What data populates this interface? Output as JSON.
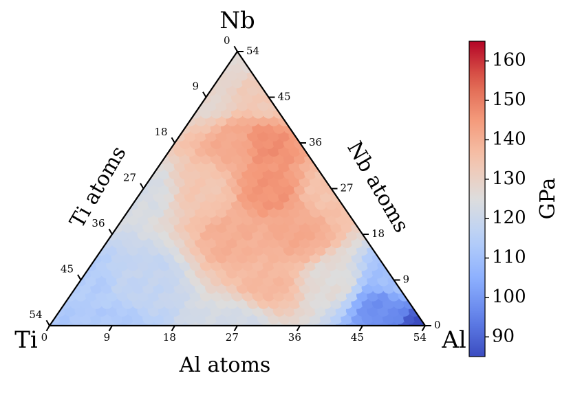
{
  "chart_data": {
    "type": "heatmap",
    "subtype": "ternary",
    "title": "",
    "total_atoms": 54,
    "vertices": {
      "top": "Nb",
      "left": "Ti",
      "right": "Al"
    },
    "axes": {
      "left": {
        "label": "Ti atoms",
        "ticks": [
          0,
          9,
          18,
          27,
          36,
          45,
          54
        ]
      },
      "right": {
        "label": "Nb atoms",
        "ticks": [
          0,
          9,
          18,
          27,
          36,
          45,
          54
        ]
      },
      "bottom": {
        "label": "Al atoms",
        "ticks": [
          0,
          9,
          18,
          27,
          36,
          45,
          54
        ]
      }
    },
    "colorbar": {
      "label": "GPa",
      "colormap": "coolwarm",
      "range": [
        85,
        165
      ],
      "ticks": [
        90,
        100,
        110,
        120,
        130,
        140,
        150,
        160
      ]
    },
    "field_estimates": [
      {
        "Ti": 54,
        "Nb": 0,
        "Al": 0,
        "value": 112
      },
      {
        "Ti": 0,
        "Nb": 54,
        "Al": 0,
        "value": 127
      },
      {
        "Ti": 0,
        "Nb": 0,
        "Al": 54,
        "value": 85
      },
      {
        "Ti": 27,
        "Nb": 27,
        "Al": 0,
        "value": 123
      },
      {
        "Ti": 27,
        "Nb": 0,
        "Al": 27,
        "value": 122
      },
      {
        "Ti": 0,
        "Nb": 27,
        "Al": 27,
        "value": 135
      },
      {
        "Ti": 18,
        "Nb": 18,
        "Al": 18,
        "value": 140
      },
      {
        "Ti": 9,
        "Nb": 36,
        "Al": 9,
        "value": 141
      },
      {
        "Ti": 5,
        "Nb": 36,
        "Al": 13,
        "value": 147
      },
      {
        "Ti": 9,
        "Nb": 27,
        "Al": 18,
        "value": 146
      },
      {
        "Ti": 18,
        "Nb": 27,
        "Al": 9,
        "value": 134
      },
      {
        "Ti": 18,
        "Nb": 9,
        "Al": 27,
        "value": 138
      },
      {
        "Ti": 9,
        "Nb": 18,
        "Al": 27,
        "value": 141
      },
      {
        "Ti": 9,
        "Nb": 9,
        "Al": 36,
        "value": 126
      },
      {
        "Ti": 36,
        "Nb": 9,
        "Al": 9,
        "value": 118
      },
      {
        "Ti": 9,
        "Nb": 45,
        "Al": 0,
        "value": 128
      },
      {
        "Ti": 0,
        "Nb": 45,
        "Al": 9,
        "value": 133
      },
      {
        "Ti": 0,
        "Nb": 9,
        "Al": 45,
        "value": 110
      },
      {
        "Ti": 4,
        "Nb": 4,
        "Al": 46,
        "value": 98
      },
      {
        "Ti": 45,
        "Nb": 0,
        "Al": 9,
        "value": 113
      },
      {
        "Ti": 45,
        "Nb": 9,
        "Al": 0,
        "value": 114
      }
    ]
  }
}
